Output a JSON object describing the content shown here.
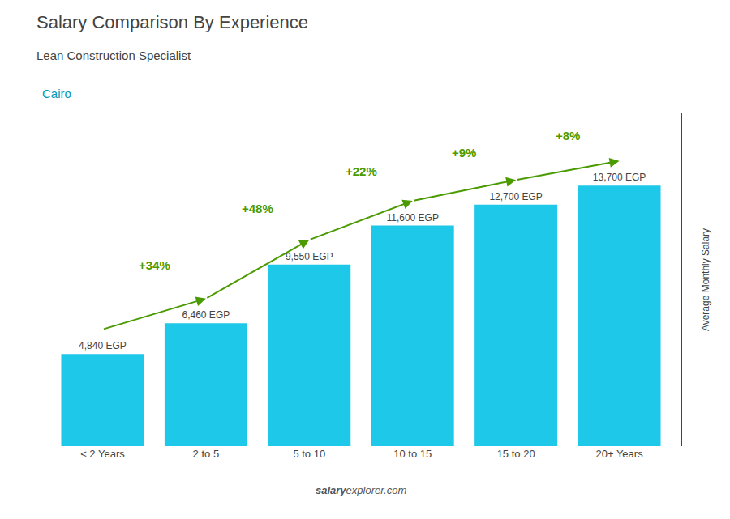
{
  "chart_data": {
    "type": "bar",
    "title": "Salary Comparison By Experience",
    "subtitle": "Lean Construction Specialist",
    "city": "Cairo",
    "ylabel": "Average Monthly Salary",
    "categories": [
      "< 2 Years",
      "2 to 5",
      "5 to 10",
      "10 to 15",
      "15 to 20",
      "20+ Years"
    ],
    "values": [
      4840,
      6460,
      9550,
      11600,
      12700,
      13700
    ],
    "value_labels": [
      "4,840 EGP",
      "6,460 EGP",
      "9,550 EGP",
      "11,600 EGP",
      "12,700 EGP",
      "13,700 EGP"
    ],
    "data_labels": true,
    "annotations": [
      "+34%",
      "+48%",
      "+22%",
      "+9%",
      "+8%"
    ],
    "footer": [
      "salary",
      "explorer.com"
    ],
    "color": "#1EC8E8",
    "ylim": [
      0,
      17500
    ],
    "grid": false,
    "tick_labels": "x"
  }
}
